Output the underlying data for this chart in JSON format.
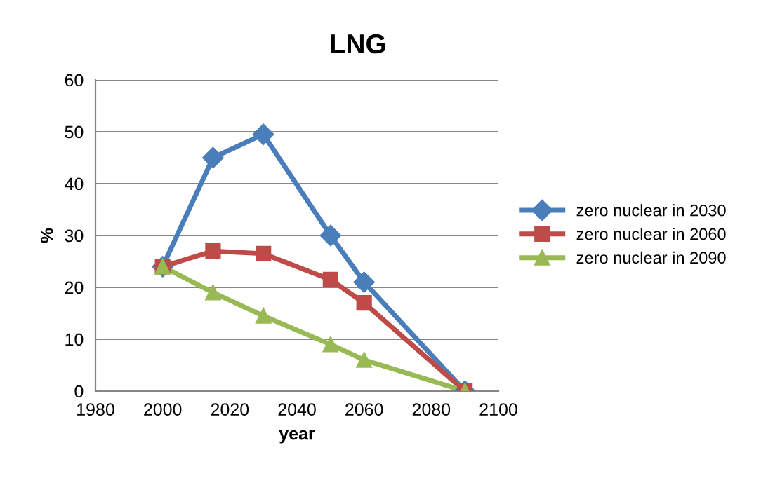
{
  "chart_data": {
    "type": "line",
    "title": "LNG",
    "xlabel": "year",
    "ylabel": "%",
    "x": [
      2000,
      2015,
      2030,
      2050,
      2060,
      2090
    ],
    "series": [
      {
        "name": "zero nuclear in 2030",
        "color": "#4a7ebb",
        "marker": "diamond",
        "values": [
          24,
          45,
          49.5,
          30,
          21,
          0
        ]
      },
      {
        "name": "zero nuclear in 2060",
        "color": "#be4b48",
        "marker": "square",
        "values": [
          24,
          27,
          26.5,
          21.5,
          17,
          0
        ]
      },
      {
        "name": "zero nuclear in 2090",
        "color": "#98b954",
        "marker": "triangle",
        "values": [
          24,
          19,
          14.5,
          9,
          6,
          0
        ]
      }
    ],
    "xlim": [
      1980,
      2100
    ],
    "xticks": [
      1980,
      2000,
      2020,
      2040,
      2060,
      2080,
      2100
    ],
    "ylim": [
      0,
      60
    ],
    "yticks": [
      0,
      10,
      20,
      30,
      40,
      50,
      60
    ],
    "grid": "y",
    "legend": "right",
    "line_style": "solid"
  }
}
